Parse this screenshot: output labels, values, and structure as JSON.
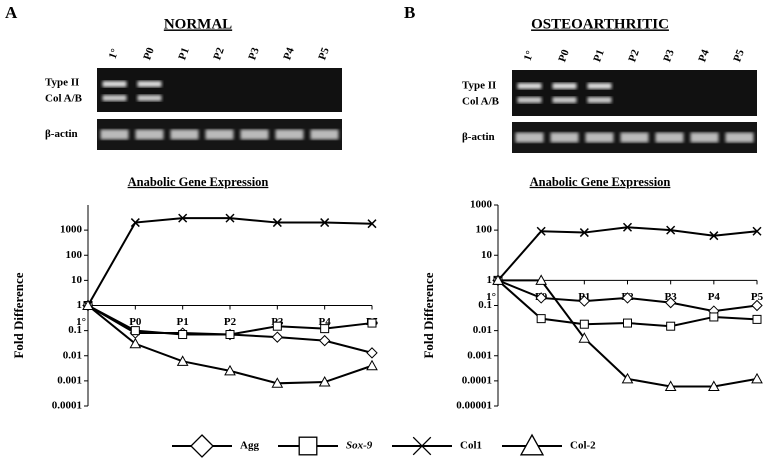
{
  "figure": {
    "panels": [
      {
        "letter": "A",
        "title": "NORMAL",
        "lanes": [
          "1°",
          "P0",
          "P1",
          "P2",
          "P3",
          "P4",
          "P5"
        ],
        "row_labels": [
          "Type II",
          "Col A/B",
          "β-actin"
        ]
      },
      {
        "letter": "B",
        "title": "OSTEOARTHRITIC",
        "lanes": [
          "1°",
          "P0",
          "P1",
          "P2",
          "P3",
          "P4",
          "P5"
        ],
        "row_labels": [
          "Type II",
          "Col A/B",
          "β-actin"
        ]
      }
    ]
  },
  "chart_data": [
    {
      "type": "line",
      "title": "Anabolic Gene Expression",
      "y_label": "Fold Difference",
      "log_scale": true,
      "categories": [
        "1°",
        "P0",
        "P1",
        "P2",
        "P3",
        "P4",
        "P5"
      ],
      "ylim": [
        0.0001,
        10000
      ],
      "yticks": [
        0.0001,
        0.001,
        0.01,
        0.1,
        1,
        10,
        100,
        1000
      ],
      "series": [
        {
          "name": "Agg",
          "marker": "diamond",
          "color": "#000000",
          "values": [
            1,
            0.08,
            0.08,
            0.07,
            0.055,
            0.04,
            0.013
          ]
        },
        {
          "name": "Sox-9",
          "marker": "square",
          "color": "#000000",
          "values": [
            1,
            0.1,
            0.07,
            0.07,
            0.15,
            0.12,
            0.2
          ]
        },
        {
          "name": "Col1",
          "marker": "cross",
          "color": "#000000",
          "values": [
            1,
            2000,
            3000,
            3000,
            2000,
            2000,
            1800
          ]
        },
        {
          "name": "Col-2",
          "marker": "triangle",
          "color": "#000000",
          "values": [
            1,
            0.03,
            0.006,
            0.0025,
            0.0008,
            0.0009,
            0.004
          ]
        }
      ]
    },
    {
      "type": "line",
      "title": "Anabolic Gene Expression",
      "y_label": "Fold Difference",
      "log_scale": true,
      "categories": [
        "1°",
        "P0",
        "P1",
        "P2",
        "P3",
        "P4",
        "P5"
      ],
      "ylim": [
        1e-05,
        1000
      ],
      "yticks": [
        1e-05,
        0.0001,
        0.001,
        0.01,
        0.1,
        1,
        10,
        100,
        1000
      ],
      "series": [
        {
          "name": "Agg",
          "marker": "diamond",
          "color": "#000000",
          "values": [
            1,
            0.2,
            0.15,
            0.2,
            0.13,
            0.06,
            0.1
          ]
        },
        {
          "name": "Sox-9",
          "marker": "square",
          "color": "#000000",
          "values": [
            1,
            0.03,
            0.018,
            0.02,
            0.015,
            0.035,
            0.028
          ]
        },
        {
          "name": "Col1",
          "marker": "cross",
          "color": "#000000",
          "values": [
            1,
            90,
            80,
            130,
            100,
            60,
            90
          ]
        },
        {
          "name": "Col-2",
          "marker": "triangle",
          "color": "#000000",
          "values": [
            1,
            1,
            0.005,
            0.00012,
            6e-05,
            6e-05,
            0.00012
          ]
        }
      ]
    }
  ]
}
